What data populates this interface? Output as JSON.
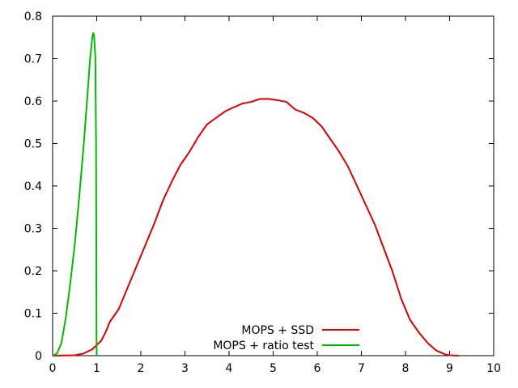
{
  "chart_data": {
    "type": "line",
    "title": "",
    "xlabel": "",
    "ylabel": "",
    "xlim": [
      0,
      10
    ],
    "ylim": [
      0,
      0.8
    ],
    "xticks": [
      "0",
      "1",
      "2",
      "3",
      "4",
      "5",
      "6",
      "7",
      "8",
      "9",
      "10"
    ],
    "yticks": [
      "0",
      "0.1",
      "0.2",
      "0.3",
      "0.4",
      "0.5",
      "0.6",
      "0.7",
      "0.8"
    ],
    "grid": false,
    "legend_position": "bottom-center",
    "series": [
      {
        "name": "MOPS + SSD",
        "color": "#dd0000",
        "points": [
          [
            0,
            0
          ],
          [
            0.5,
            0.001
          ],
          [
            0.7,
            0.005
          ],
          [
            0.9,
            0.015
          ],
          [
            1.0,
            0.025
          ],
          [
            1.1,
            0.035
          ],
          [
            1.2,
            0.055
          ],
          [
            1.3,
            0.08
          ],
          [
            1.5,
            0.11
          ],
          [
            1.7,
            0.16
          ],
          [
            1.9,
            0.21
          ],
          [
            2.1,
            0.26
          ],
          [
            2.3,
            0.31
          ],
          [
            2.5,
            0.365
          ],
          [
            2.7,
            0.41
          ],
          [
            2.9,
            0.45
          ],
          [
            3.1,
            0.48
          ],
          [
            3.3,
            0.515
          ],
          [
            3.5,
            0.545
          ],
          [
            3.7,
            0.56
          ],
          [
            3.9,
            0.575
          ],
          [
            4.1,
            0.585
          ],
          [
            4.3,
            0.594
          ],
          [
            4.5,
            0.598
          ],
          [
            4.7,
            0.605
          ],
          [
            4.9,
            0.605
          ],
          [
            5.1,
            0.602
          ],
          [
            5.3,
            0.598
          ],
          [
            5.5,
            0.58
          ],
          [
            5.7,
            0.572
          ],
          [
            5.9,
            0.56
          ],
          [
            6.1,
            0.54
          ],
          [
            6.3,
            0.51
          ],
          [
            6.5,
            0.48
          ],
          [
            6.7,
            0.445
          ],
          [
            6.9,
            0.4
          ],
          [
            7.1,
            0.355
          ],
          [
            7.3,
            0.31
          ],
          [
            7.5,
            0.255
          ],
          [
            7.7,
            0.2
          ],
          [
            7.9,
            0.135
          ],
          [
            8.1,
            0.085
          ],
          [
            8.3,
            0.055
          ],
          [
            8.5,
            0.03
          ],
          [
            8.7,
            0.012
          ],
          [
            8.9,
            0.003
          ],
          [
            9.0,
            0.001
          ],
          [
            9.2,
            0
          ]
        ]
      },
      {
        "name": "MOPS + ratio test",
        "color": "#00bb00",
        "points": [
          [
            0,
            0
          ],
          [
            0.1,
            0.005
          ],
          [
            0.2,
            0.03
          ],
          [
            0.3,
            0.09
          ],
          [
            0.4,
            0.17
          ],
          [
            0.5,
            0.26
          ],
          [
            0.6,
            0.37
          ],
          [
            0.7,
            0.49
          ],
          [
            0.78,
            0.6
          ],
          [
            0.85,
            0.7
          ],
          [
            0.9,
            0.75
          ],
          [
            0.92,
            0.76
          ],
          [
            0.94,
            0.755
          ],
          [
            0.97,
            0.7
          ],
          [
            0.985,
            0.5
          ],
          [
            0.99,
            0.3
          ],
          [
            0.995,
            0.05
          ],
          [
            1.0,
            0
          ]
        ]
      }
    ]
  }
}
